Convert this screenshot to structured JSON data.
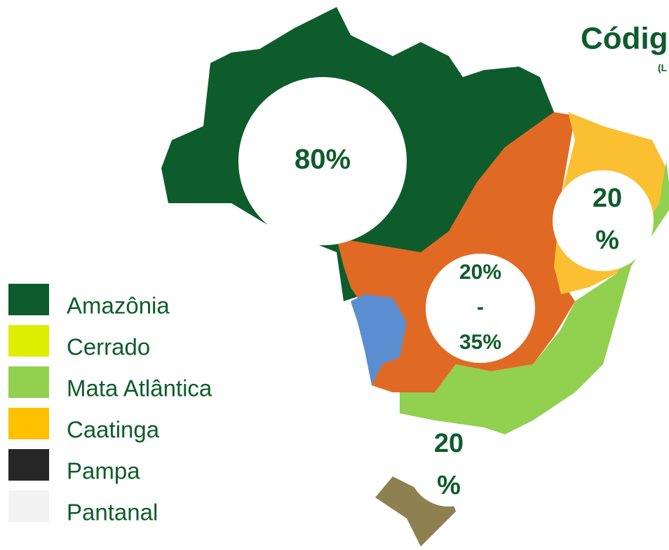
{
  "header": {
    "title": "Códig",
    "subtitle": "(L"
  },
  "regions": [
    {
      "lines": [
        "80%"
      ]
    },
    {
      "lines": [
        "20",
        "%"
      ]
    },
    {
      "lines": [
        "20%",
        "-",
        "35%"
      ]
    },
    {
      "lines": [
        "20",
        "%"
      ]
    }
  ],
  "legend": [
    {
      "name": "Amazônia",
      "color": "#0e5c2c"
    },
    {
      "name": "Cerrado",
      "color": "#ddee00"
    },
    {
      "name": "Mata Atlântica",
      "color": "#92d050"
    },
    {
      "name": "Caatinga",
      "color": "#ffc000"
    },
    {
      "name": "Pampa",
      "color": "#262626"
    },
    {
      "name": "Pantanal",
      "color": "#f2f2f2"
    }
  ]
}
